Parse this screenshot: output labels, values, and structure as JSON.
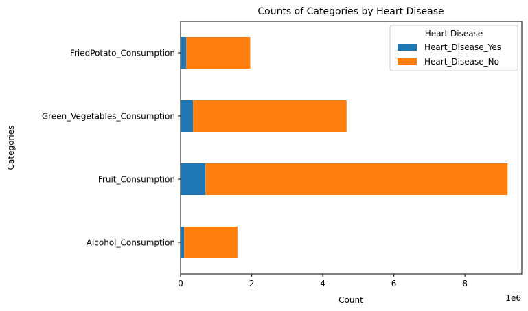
{
  "chart_data": {
    "type": "bar",
    "orientation": "horizontal",
    "stacked": true,
    "title": "Counts of Categories by Heart Disease",
    "xlabel": "Count",
    "ylabel": "Categories",
    "x_scale_note": "1e6",
    "xlim": [
      0,
      9.6
    ],
    "x_ticks": [
      0,
      2,
      4,
      6,
      8
    ],
    "x_tick_labels": [
      "0",
      "2",
      "4",
      "6",
      "8"
    ],
    "categories": [
      "Alcohol_Consumption",
      "Fruit_Consumption",
      "Green_Vegetables_Consumption",
      "FriedPotato_Consumption"
    ],
    "series": [
      {
        "name": "Heart_Disease_Yes",
        "color": "#1f77b4",
        "values": [
          0.1,
          0.7,
          0.35,
          0.16
        ]
      },
      {
        "name": "Heart_Disease_No",
        "color": "#ff7f0e",
        "values": [
          1.5,
          8.5,
          4.32,
          1.8
        ]
      }
    ],
    "legend": {
      "title": "Heart Disease",
      "placement": "upper-right"
    },
    "grid": false
  }
}
